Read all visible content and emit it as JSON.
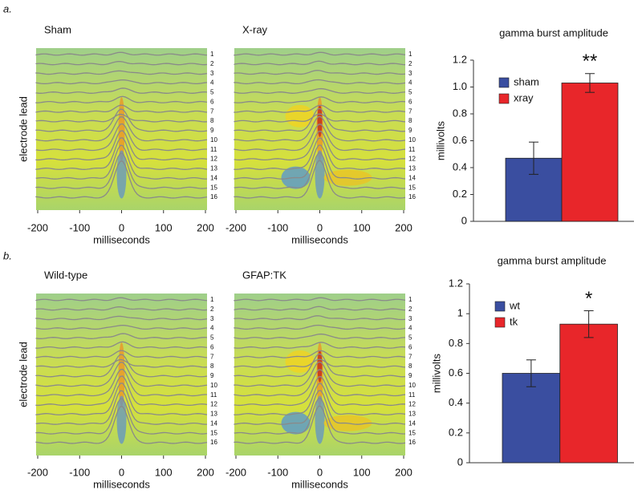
{
  "panel_labels": [
    "a.",
    "b."
  ],
  "chart_data": [
    {
      "type": "heatmap",
      "title": "Sham",
      "xlabel": "milliseconds",
      "ylabel": "electrode lead",
      "xlim": [
        -200,
        200
      ],
      "xticks": [
        -200,
        -100,
        0,
        100,
        200
      ],
      "leads": [
        1,
        2,
        3,
        4,
        5,
        6,
        7,
        8,
        9,
        10,
        11,
        12,
        13,
        14,
        15,
        16
      ]
    },
    {
      "type": "heatmap",
      "title": "X-ray",
      "xlabel": "milliseconds",
      "xlim": [
        -200,
        200
      ],
      "xticks": [
        -200,
        -100,
        0,
        100,
        200
      ],
      "leads": [
        1,
        2,
        3,
        4,
        5,
        6,
        7,
        8,
        9,
        10,
        11,
        12,
        13,
        14,
        15,
        16
      ]
    },
    {
      "type": "bar",
      "title": "gamma burst amplitude",
      "ylabel": "millivolts",
      "ylim": [
        0,
        1.2
      ],
      "yticks": [
        0,
        0.2,
        0.4,
        0.6,
        0.8,
        {
          "value": 1,
          "label": "1.0"
        },
        1.2
      ],
      "series": [
        {
          "name": "sham",
          "color": "#3a4ea0",
          "values": [
            0.47
          ],
          "errors": [
            0.12
          ]
        },
        {
          "name": "xray",
          "color": "#e8262a",
          "values": [
            1.03
          ],
          "errors": [
            0.07
          ]
        }
      ],
      "annotation": "**",
      "legend": "upper left"
    },
    {
      "type": "heatmap",
      "title": "Wild-type",
      "xlabel": "milliseconds",
      "ylabel": "electrode lead",
      "xlim": [
        -200,
        200
      ],
      "xticks": [
        -200,
        -100,
        0,
        100,
        200
      ],
      "leads": [
        1,
        2,
        3,
        4,
        5,
        6,
        7,
        8,
        9,
        10,
        11,
        12,
        13,
        14,
        15,
        16
      ]
    },
    {
      "type": "heatmap",
      "title": "GFAP:TK",
      "xlabel": "milliseconds",
      "xlim": [
        -200,
        200
      ],
      "xticks": [
        -200,
        -100,
        0,
        100,
        200
      ],
      "leads": [
        1,
        2,
        3,
        4,
        5,
        6,
        7,
        8,
        9,
        10,
        11,
        12,
        13,
        14,
        15,
        16
      ]
    },
    {
      "type": "bar",
      "title": "gamma burst amplitude",
      "ylabel": "millivolts",
      "ylim": [
        0,
        1.2
      ],
      "yticks": [
        0,
        0.2,
        0.4,
        0.6,
        0.8,
        1,
        1.2
      ],
      "series": [
        {
          "name": "wt",
          "color": "#3a4ea0",
          "values": [
            0.6
          ],
          "errors": [
            0.09
          ]
        },
        {
          "name": "tk",
          "color": "#e8262a",
          "values": [
            0.93
          ],
          "errors": [
            0.09
          ]
        }
      ],
      "annotation": "*",
      "legend": "upper left"
    }
  ]
}
